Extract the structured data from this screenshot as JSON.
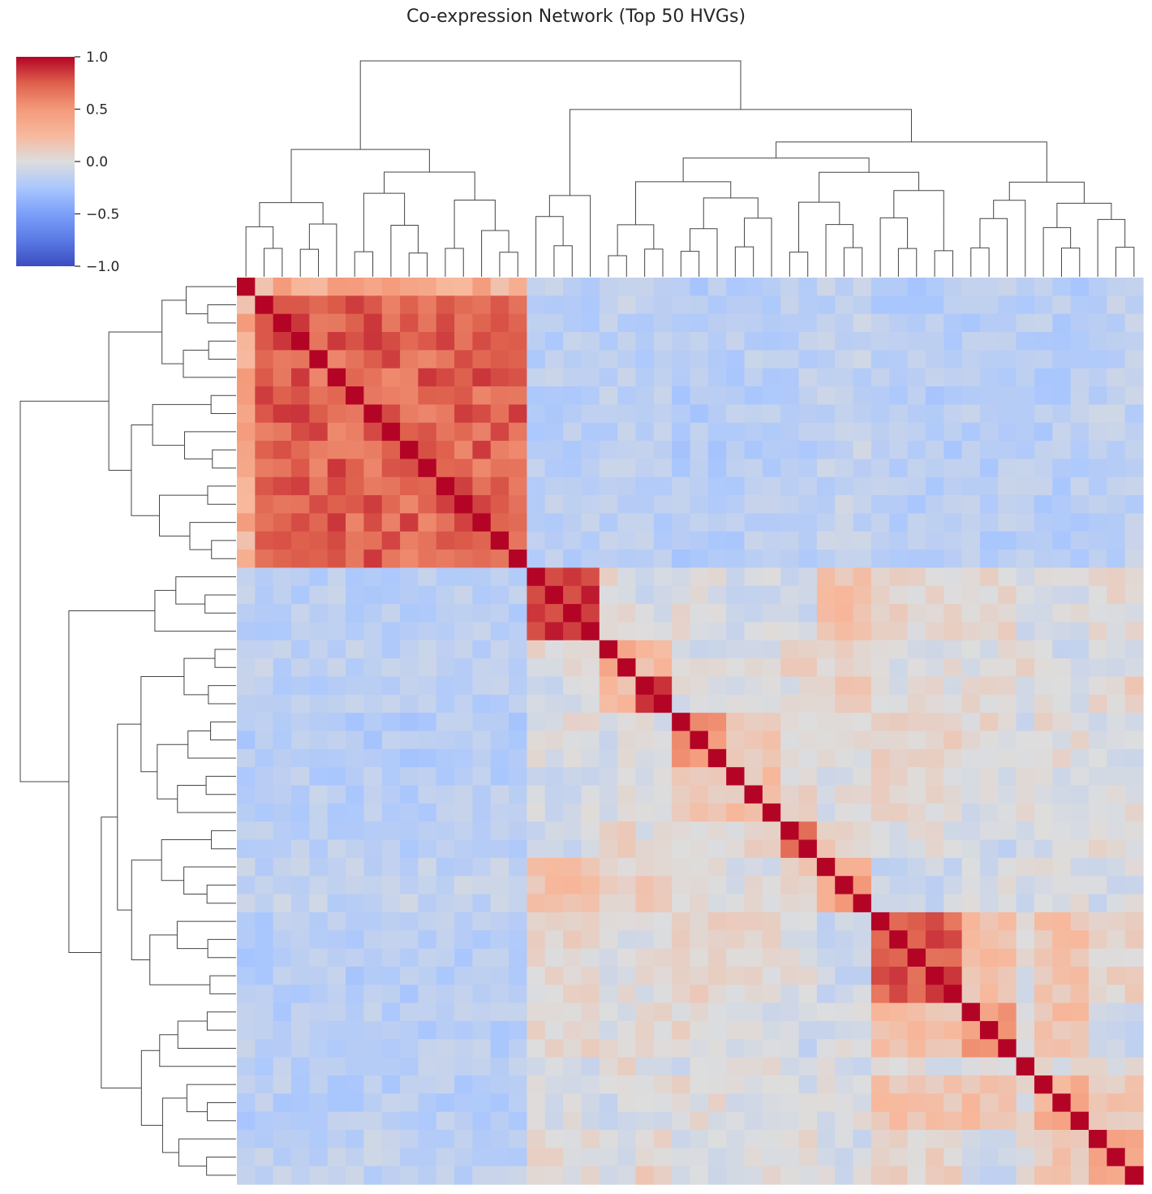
{
  "chart_data": {
    "type": "heatmap",
    "title": "Co-expression Network (Top 50 HVGs)",
    "xlabel": "",
    "ylabel": "",
    "n": 50,
    "colormap": "coolwarm",
    "colors": {
      "min": "#3b4cc0",
      "mid": "#dddddd",
      "max": "#b40426"
    },
    "colorbar": {
      "vmin": -1.0,
      "vmax": 1.0,
      "ticks": [
        1.0,
        0.5,
        0.0,
        -0.5,
        -1.0
      ],
      "tick_labels": [
        "1.0",
        "0.5",
        "0.0",
        "−0.5",
        "−1.0"
      ]
    },
    "clusters": [
      {
        "start": 0,
        "end": 16,
        "within": 0.72
      },
      {
        "start": 16,
        "end": 20,
        "within": 0.93
      },
      {
        "start": 20,
        "end": 22,
        "within": 0.35
      },
      {
        "start": 22,
        "end": 24,
        "within": 0.85
      },
      {
        "start": 24,
        "end": 27,
        "within": 0.45
      },
      {
        "start": 27,
        "end": 30,
        "within": 0.25
      },
      {
        "start": 30,
        "end": 32,
        "within": 0.6
      },
      {
        "start": 32,
        "end": 35,
        "within": 0.45
      },
      {
        "start": 35,
        "end": 40,
        "within": 0.78
      },
      {
        "start": 40,
        "end": 43,
        "within": 0.55
      },
      {
        "start": 43,
        "end": 44,
        "within": 0.0
      },
      {
        "start": 44,
        "end": 47,
        "within": 0.3
      },
      {
        "start": 47,
        "end": 50,
        "within": 0.3
      }
    ],
    "dendrogram_leaves": 50
  }
}
